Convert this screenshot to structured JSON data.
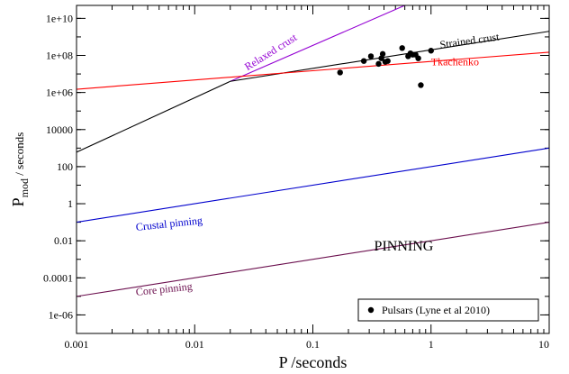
{
  "chart_data": {
    "type": "line",
    "xlabel": "P /seconds",
    "ylabel_main": "P",
    "ylabel_sub": "mod",
    "ylabel_rest": " / seconds",
    "x_scale": "log",
    "y_scale": "log",
    "xlim": [
      0.001,
      10
    ],
    "ylim": [
      1e-07,
      50000000000.0
    ],
    "x_ticks": [
      0.001,
      0.01,
      0.1,
      1,
      10
    ],
    "x_tick_labels": [
      "0.001",
      "0.01",
      "0.1",
      "1",
      "10"
    ],
    "y_ticks": [
      1e-06,
      0.0001,
      0.01,
      1,
      100,
      10000,
      1000000.0,
      100000000.0,
      10000000000.0
    ],
    "y_tick_labels": [
      "1e-06",
      "0.0001",
      "0.01",
      "1",
      "100",
      "10000",
      "1e+06",
      "1e+08",
      "1e+10"
    ],
    "grid": false,
    "series": [
      {
        "name": "Relaxed crust",
        "color": "#9400d3",
        "x": [
          0.02,
          0.6
        ],
        "y": [
          4000000.0,
          50000000000.0
        ]
      },
      {
        "name": "Strained crust",
        "color": "#000000",
        "x": [
          0.001,
          0.02,
          10
        ],
        "y": [
          600,
          4000000.0,
          2000000000.0
        ]
      },
      {
        "name": "Tkachenko",
        "color": "#ff0000",
        "x": [
          0.001,
          10
        ],
        "y": [
          1500000.0,
          150000000.0
        ]
      },
      {
        "name": "Crustal pinning",
        "color": "#0000cd",
        "x": [
          0.001,
          10
        ],
        "y": [
          0.1,
          1000
        ]
      },
      {
        "name": "Core pinning",
        "color": "#6b0f4e",
        "x": [
          0.001,
          10
        ],
        "y": [
          1e-05,
          0.1
        ]
      }
    ],
    "line_labels": [
      {
        "text": "Relaxed crust",
        "color": "#9400d3",
        "x": 0.028,
        "y": 15000000.0,
        "angle": -32
      },
      {
        "text": "Strained crust",
        "color": "#000000",
        "x": 1.2,
        "y": 240000000.0,
        "angle": -8
      },
      {
        "text": "Tkachenko",
        "color": "#ff0000",
        "x": 1.0,
        "y": 30000000.0,
        "angle": 0
      },
      {
        "text": "Crustal pinning",
        "color": "#0000cd",
        "x": 0.0032,
        "y": 0.035,
        "angle": -6
      },
      {
        "text": "Core pinning",
        "color": "#6b0f4e",
        "x": 0.0032,
        "y": 1.1e-05,
        "angle": -6
      }
    ],
    "region_label": {
      "text": "PINNING",
      "x": 0.33,
      "y": 0.003
    },
    "pulsars": {
      "name": "Pulsars (Lyne et al 2010)",
      "color": "#000000",
      "x": [
        0.17,
        0.27,
        0.31,
        0.36,
        0.38,
        0.39,
        0.41,
        0.43,
        0.57,
        0.64,
        0.67,
        0.7,
        0.74,
        0.78,
        0.82,
        1.0
      ],
      "y": [
        12000000.0,
        50000000.0,
        90000000.0,
        35000000.0,
        70000000.0,
        120000000.0,
        45000000.0,
        50000000.0,
        250000000.0,
        90000000.0,
        130000000.0,
        110000000.0,
        110000000.0,
        70000000.0,
        2500000.0,
        180000000.0
      ]
    },
    "legend": {
      "label": "Pulsars (Lyne et al 2010)",
      "placement": "bottom-right"
    }
  }
}
